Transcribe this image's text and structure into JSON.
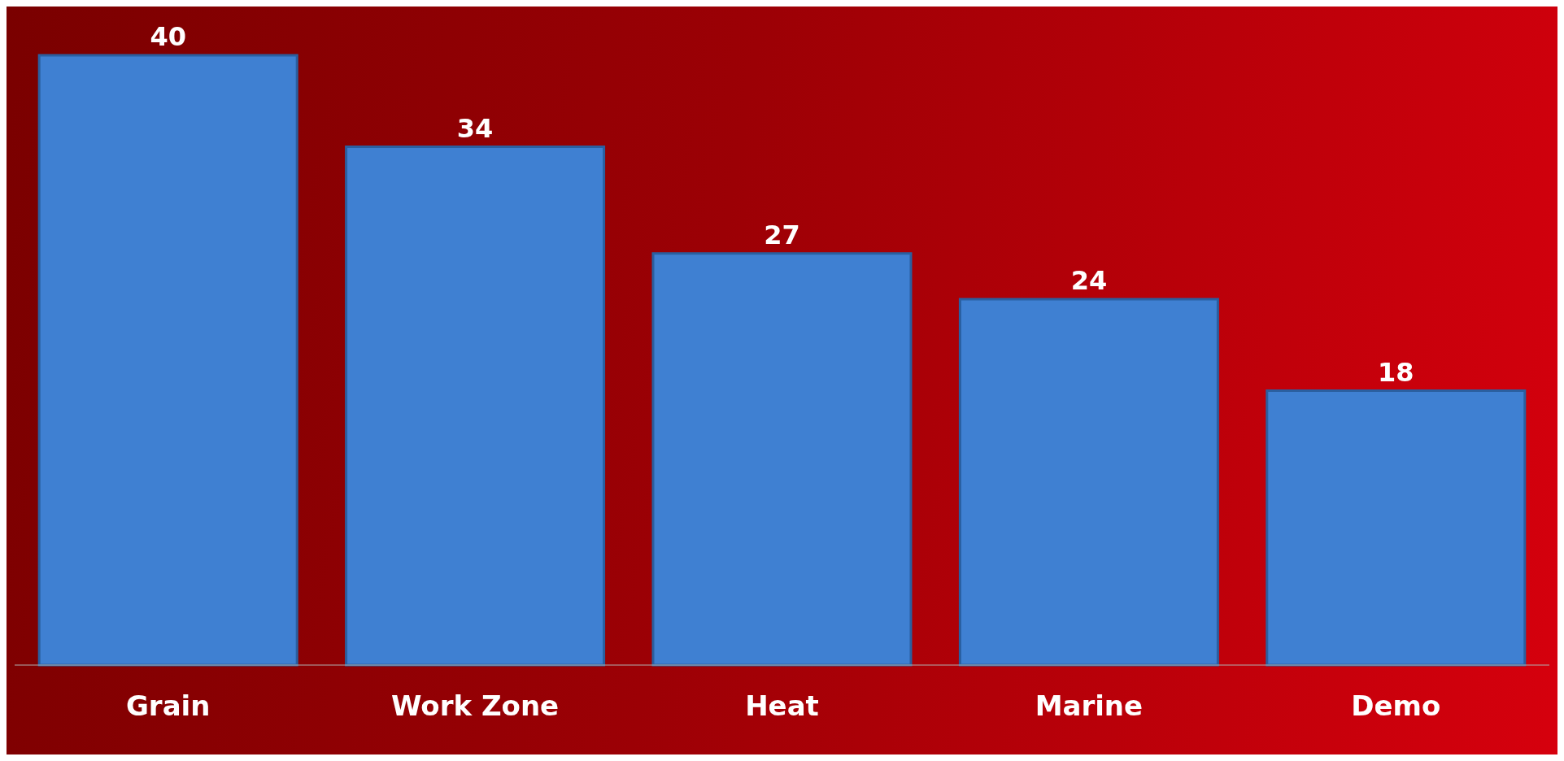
{
  "chart_data": {
    "type": "bar",
    "categories": [
      "Grain",
      "Work Zone",
      "Heat",
      "Marine",
      "Demo"
    ],
    "values": [
      40,
      34,
      27,
      24,
      18
    ],
    "color": "#3f80d2",
    "data_labels": true
  }
}
